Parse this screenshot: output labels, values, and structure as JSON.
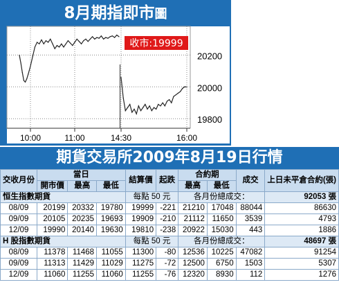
{
  "chart_title": "8月期指即市",
  "chart_title_suffix": "圖",
  "close_label": "收市:19999",
  "chart_data": {
    "type": "line",
    "title": "8月期指即市圖",
    "x_ticks": [
      "10:00",
      "11:00",
      "14:30",
      "16:00"
    ],
    "y_ticks": [
      19800,
      20000,
      20200
    ],
    "ylim": [
      19740,
      20380
    ],
    "grid": "dotted",
    "series": [
      {
        "session": "morning",
        "points": [
          [
            "09:45",
            20199
          ],
          [
            "09:47",
            20150
          ],
          [
            "09:49",
            20090
          ],
          [
            "09:51",
            20040
          ],
          [
            "09:53",
            20030
          ],
          [
            "09:55",
            20050
          ],
          [
            "09:57",
            20080
          ],
          [
            "10:00",
            20130
          ],
          [
            "10:03",
            20190
          ],
          [
            "10:06",
            20250
          ],
          [
            "10:09",
            20280
          ],
          [
            "10:12",
            20270
          ],
          [
            "10:15",
            20295
          ],
          [
            "10:18",
            20270
          ],
          [
            "10:21",
            20290
          ],
          [
            "10:24",
            20280
          ],
          [
            "10:27",
            20300
          ],
          [
            "10:30",
            20270
          ],
          [
            "10:33",
            20240
          ],
          [
            "10:36",
            20260
          ],
          [
            "10:39",
            20250
          ],
          [
            "10:42",
            20270
          ],
          [
            "10:45",
            20250
          ],
          [
            "10:48",
            20270
          ],
          [
            "10:51",
            20290
          ],
          [
            "10:54",
            20275
          ],
          [
            "10:57",
            20260
          ],
          [
            "11:00",
            20280
          ],
          [
            "11:03",
            20300
          ],
          [
            "11:06",
            20285
          ],
          [
            "11:09",
            20270
          ],
          [
            "11:12",
            20290
          ],
          [
            "11:15",
            20300
          ],
          [
            "11:18",
            20285
          ],
          [
            "11:21",
            20300
          ],
          [
            "11:24",
            20315
          ],
          [
            "11:27",
            20300
          ],
          [
            "11:30",
            20310
          ],
          [
            "11:33",
            20305
          ],
          [
            "11:36",
            20320
          ],
          [
            "11:39",
            20300
          ],
          [
            "11:42",
            20310
          ],
          [
            "11:45",
            20305
          ],
          [
            "11:48",
            20315
          ],
          [
            "11:51",
            20320
          ],
          [
            "11:54",
            20310
          ],
          [
            "11:57",
            20325
          ],
          [
            "12:00",
            20315
          ]
        ]
      },
      {
        "session": "afternoon",
        "points": [
          [
            "14:30",
            20060
          ],
          [
            "14:33",
            19930
          ],
          [
            "14:36",
            19850
          ],
          [
            "14:39",
            19870
          ],
          [
            "14:42",
            19890
          ],
          [
            "14:45",
            19840
          ],
          [
            "14:48",
            19860
          ],
          [
            "14:51",
            19830
          ],
          [
            "14:54",
            19880
          ],
          [
            "14:57",
            19850
          ],
          [
            "15:00",
            19870
          ],
          [
            "15:03",
            19890
          ],
          [
            "15:06",
            19860
          ],
          [
            "15:09",
            19880
          ],
          [
            "15:12",
            19850
          ],
          [
            "15:15",
            19870
          ],
          [
            "15:18",
            19860
          ],
          [
            "15:21",
            19890
          ],
          [
            "15:24",
            19880
          ],
          [
            "15:27",
            19900
          ],
          [
            "15:30",
            19880
          ],
          [
            "15:33",
            19910
          ],
          [
            "15:36",
            19920
          ],
          [
            "15:39",
            19900
          ],
          [
            "15:42",
            19940
          ],
          [
            "15:45",
            19950
          ],
          [
            "15:48",
            19960
          ],
          [
            "15:51",
            19970
          ],
          [
            "15:54",
            19990
          ],
          [
            "15:57",
            20000
          ],
          [
            "16:00",
            19999
          ]
        ]
      }
    ]
  },
  "table_title": "期貨交易所2009年8月19日行情",
  "headers": {
    "contract_month": "交收月份",
    "today": "當日",
    "open": "開市價",
    "high": "最高",
    "low": "最低",
    "settle": "結算價",
    "change": "起跌",
    "contract_period": "合約期",
    "cp_high": "最高",
    "cp_low": "最低",
    "volume": "成交",
    "oi": "上日未平倉合約(張)"
  },
  "groups": [
    {
      "name": "恒生指數期貨",
      "per_point": "每點 50 元",
      "total_label": "各月份總成交：",
      "total_value": "92053 張",
      "rows": [
        [
          "08/09",
          "20199",
          "20332",
          "19780",
          "19999",
          "-221",
          "21210",
          "17048",
          "88044",
          "86630"
        ],
        [
          "09/09",
          "20105",
          "20235",
          "19693",
          "19909",
          "-210",
          "21112",
          "11650",
          "3539",
          "4793"
        ],
        [
          "12/09",
          "19990",
          "20140",
          "19630",
          "19810",
          "-238",
          "20922",
          "15030",
          "443",
          "1886"
        ]
      ]
    },
    {
      "name": "H 股指數期貨",
      "per_point": "每點 50 元",
      "total_label": "各月份總成交：",
      "total_value": "48697 張",
      "rows": [
        [
          "08/09",
          "11378",
          "11468",
          "11055",
          "11300",
          "-80",
          "12536",
          "10225",
          "47082",
          "91254"
        ],
        [
          "09/09",
          "11313",
          "11429",
          "11029",
          "11275",
          "-72",
          "12500",
          "6750",
          "1503",
          "5307"
        ],
        [
          "12/09",
          "11060",
          "11255",
          "11060",
          "11255",
          "-76",
          "12320",
          "8930",
          "112",
          "1276"
        ]
      ]
    }
  ]
}
